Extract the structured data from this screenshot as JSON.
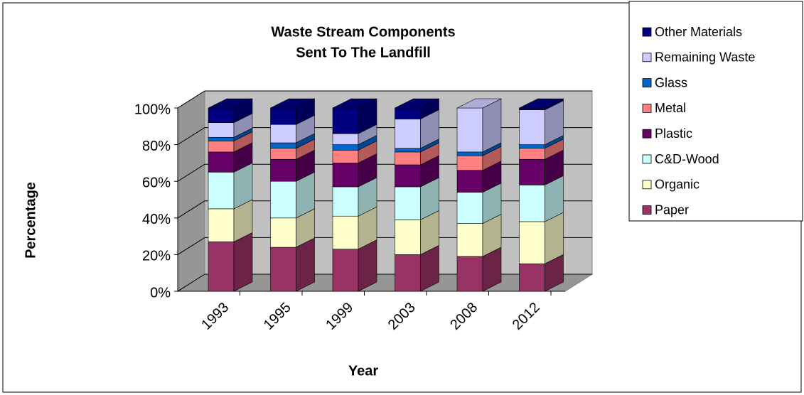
{
  "chart_data": {
    "type": "stacked-bar-3d",
    "title": "Waste Stream Components",
    "subtitle": "Sent To The Landfill",
    "y_label": "Percentage",
    "x_label": "Year",
    "categories": [
      "1993",
      "1995",
      "1999",
      "2003",
      "2008",
      "2012"
    ],
    "series": [
      {
        "name": "Paper",
        "color": "#993366",
        "values": [
          27,
          24,
          23,
          20,
          19,
          15
        ]
      },
      {
        "name": "Organic",
        "color": "#ffffcc",
        "values": [
          18,
          16,
          18,
          19,
          18,
          23
        ]
      },
      {
        "name": "C&D-Wood",
        "color": "#ccffff",
        "values": [
          20,
          20,
          16,
          18,
          17,
          20
        ]
      },
      {
        "name": "Plastic",
        "color": "#660066",
        "values": [
          11,
          12,
          13,
          12,
          12,
          14
        ]
      },
      {
        "name": "Metal",
        "color": "#ff8080",
        "values": [
          6,
          6,
          7,
          7,
          8,
          6
        ]
      },
      {
        "name": "Glass",
        "color": "#0066cc",
        "values": [
          2,
          3,
          3,
          2,
          2,
          2
        ]
      },
      {
        "name": "Remaining Waste",
        "color": "#ccccff",
        "values": [
          8,
          10,
          6,
          16,
          24,
          19
        ]
      },
      {
        "name": "Other Materials",
        "color": "#000080",
        "values": [
          8,
          9,
          14,
          6,
          0,
          1
        ]
      }
    ],
    "ylim": [
      0,
      100
    ],
    "yticks": [
      {
        "value": 0,
        "label": "0%"
      },
      {
        "value": 20,
        "label": "20%"
      },
      {
        "value": 40,
        "label": "40%"
      },
      {
        "value": 60,
        "label": "60%"
      },
      {
        "value": 80,
        "label": "80%"
      },
      {
        "value": 100,
        "label": "100%"
      }
    ],
    "grid": true,
    "legend": "right"
  }
}
